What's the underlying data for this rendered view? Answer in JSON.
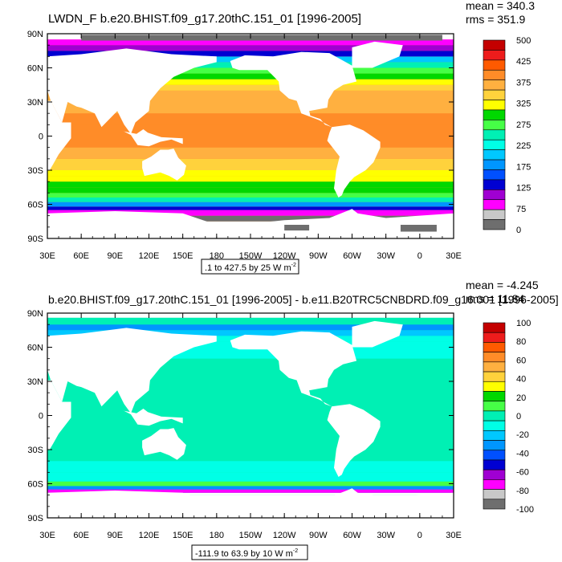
{
  "colors": {
    "land": "#ffffff",
    "frame": "#000000",
    "missing": "#6e6e6e"
  },
  "chart_data": [
    {
      "type": "heatmap",
      "title": "LWDN_F b.e20.BHIST.f09_g17.20thC.151_01 [1996-2005]",
      "stats": {
        "mean": "mean = 340.3",
        "rms": "rms = 351.9"
      },
      "xlabel": "",
      "ylabel": "",
      "x_tick_labels": [
        "30E",
        "60E",
        "90E",
        "120E",
        "150E",
        "180",
        "150W",
        "120W",
        "90W",
        "60W",
        "30W",
        "0",
        "30E"
      ],
      "y_tick_labels": [
        "90N",
        "60N",
        "30N",
        "0",
        "30S",
        "60S",
        "90S"
      ],
      "xlim": [
        30,
        390
      ],
      "ylim": [
        -90,
        90
      ],
      "range_note_prefix": ".1 to 427.5 by 25  W m",
      "range_note_unit_exp": "-2",
      "colorbar_labels": [
        "500",
        "425",
        "375",
        "325",
        "275",
        "225",
        "175",
        "125",
        "75",
        "0"
      ],
      "colorbar_colors": [
        "#c40000",
        "#ee1c1c",
        "#ff5a00",
        "#ff8c28",
        "#ffb040",
        "#ffd23c",
        "#ffff00",
        "#00d800",
        "#46ff46",
        "#00f0b4",
        "#00ffe6",
        "#00c8ff",
        "#0096ff",
        "#0050ff",
        "#0000d2",
        "#a000d2",
        "#ff00ff",
        "#c8c8c8",
        "#6e6e6e"
      ],
      "zonal_profile": {
        "lat": [
          -90,
          -75,
          -70,
          -65,
          -62,
          -58,
          -54,
          -50,
          -45,
          -40,
          -35,
          -30,
          -20,
          -10,
          0,
          10,
          20,
          30,
          40,
          45,
          50,
          55,
          60,
          65,
          70,
          75,
          80,
          85,
          90
        ],
        "value": [
          null,
          20,
          60,
          110,
          180,
          240,
          280,
          300,
          310,
          325,
          340,
          360,
          385,
          400,
          410,
          405,
          390,
          370,
          345,
          330,
          310,
          280,
          240,
          200,
          120,
          80,
          60,
          null,
          null
        ]
      }
    },
    {
      "type": "heatmap",
      "title": "b.e20.BHIST.f09_g17.20thC.151_01 [1996-2005] - b.e11.B20TRC5CNBDRD.f09_g16.001 [1996-2005]",
      "stats": {
        "mean": "mean = -4.245",
        "rms": "rms = 11.84"
      },
      "xlabel": "",
      "ylabel": "",
      "x_tick_labels": [
        "30E",
        "60E",
        "90E",
        "120E",
        "150E",
        "180",
        "150W",
        "120W",
        "90W",
        "60W",
        "30W",
        "0",
        "30E"
      ],
      "y_tick_labels": [
        "90N",
        "60N",
        "30N",
        "0",
        "30S",
        "60S",
        "90S"
      ],
      "xlim": [
        30,
        390
      ],
      "ylim": [
        -90,
        90
      ],
      "range_note_prefix": "-111.9 to 63.9 by 10  W m",
      "range_note_unit_exp": "-2",
      "colorbar_labels": [
        "100",
        "80",
        "60",
        "40",
        "20",
        "0",
        "-20",
        "-40",
        "-60",
        "-80",
        "-100"
      ],
      "colorbar_colors": [
        "#c40000",
        "#ee1c1c",
        "#ff5a00",
        "#ff8c28",
        "#ffb040",
        "#ffd23c",
        "#ffff00",
        "#00d800",
        "#46ff46",
        "#00f0b4",
        "#00ffe6",
        "#00c8ff",
        "#0096ff",
        "#0050ff",
        "#0000d2",
        "#a000d2",
        "#ff00ff",
        "#c8c8c8",
        "#6e6e6e"
      ],
      "zonal_profile": {
        "lat": [
          -90,
          -70,
          -68,
          -65,
          -62,
          -58,
          -50,
          -40,
          -30,
          -20,
          -10,
          0,
          10,
          20,
          30,
          40,
          50,
          60,
          65,
          70,
          75,
          80,
          85,
          90
        ],
        "value": [
          null,
          null,
          -70,
          -30,
          10,
          -8,
          -6,
          -5,
          -4,
          -3,
          -3,
          -3,
          -3,
          -4,
          -4,
          -5,
          -6,
          -8,
          -10,
          -25,
          -30,
          -5,
          -3,
          null
        ]
      }
    }
  ]
}
